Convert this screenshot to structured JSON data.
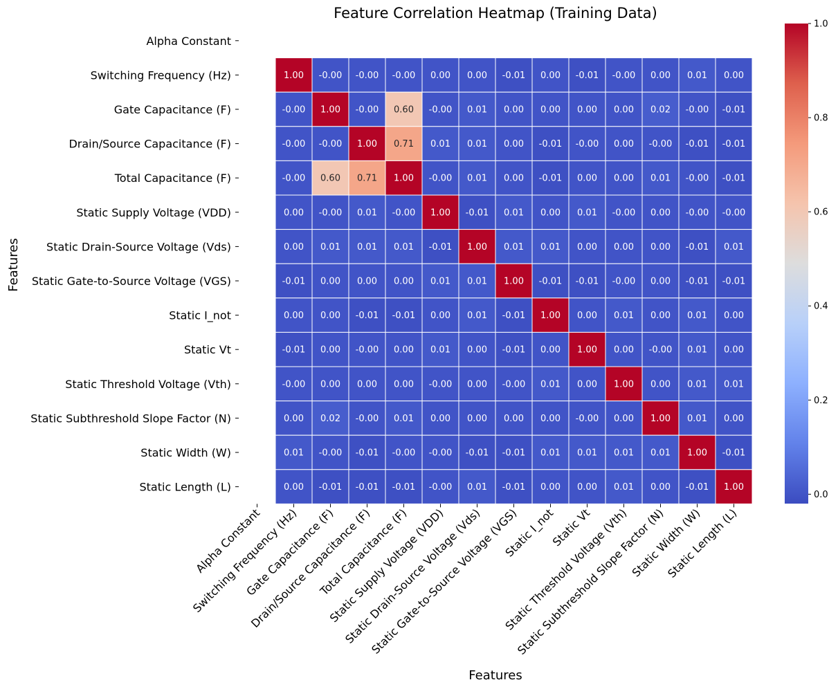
{
  "chart_data": {
    "type": "heatmap",
    "title": "Feature Correlation Heatmap (Training Data)",
    "xlabel": "Features",
    "ylabel": "Features",
    "features": [
      "Alpha Constant",
      "Switching Frequency (Hz)",
      "Gate Capacitance (F)",
      "Drain/Source Capacitance (F)",
      "Total Capacitance (F)",
      "Static Supply Voltage (VDD)",
      "Static Drain-Source Voltage (Vds)",
      "Static Gate-to-Source Voltage (VGS)",
      "Static I_not",
      "Static Vt",
      "Static Threshold Voltage (Vth)",
      "Static Subthreshold Slope Factor (N)",
      "Static Width (W)",
      "Static Length (L)"
    ],
    "matrix": [
      [
        null,
        null,
        null,
        null,
        null,
        null,
        null,
        null,
        null,
        null,
        null,
        null,
        null,
        null
      ],
      [
        null,
        1.0,
        -0.0,
        -0.0,
        -0.0,
        0.0,
        0.0,
        -0.01,
        0.0,
        -0.01,
        -0.0,
        0.0,
        0.01,
        0.0
      ],
      [
        null,
        -0.0,
        1.0,
        -0.0,
        0.6,
        -0.0,
        0.01,
        0.0,
        0.0,
        0.0,
        0.0,
        0.02,
        -0.0,
        -0.01
      ],
      [
        null,
        -0.0,
        -0.0,
        1.0,
        0.71,
        0.01,
        0.01,
        0.0,
        -0.01,
        -0.0,
        0.0,
        -0.0,
        -0.01,
        -0.01
      ],
      [
        null,
        -0.0,
        0.6,
        0.71,
        1.0,
        -0.0,
        0.01,
        0.0,
        -0.01,
        0.0,
        0.0,
        0.01,
        -0.0,
        -0.01
      ],
      [
        null,
        0.0,
        -0.0,
        0.01,
        -0.0,
        1.0,
        -0.01,
        0.01,
        0.0,
        0.01,
        -0.0,
        0.0,
        -0.0,
        -0.0
      ],
      [
        null,
        0.0,
        0.01,
        0.01,
        0.01,
        -0.01,
        1.0,
        0.01,
        0.01,
        0.0,
        0.0,
        0.0,
        -0.01,
        0.01
      ],
      [
        null,
        -0.01,
        0.0,
        0.0,
        0.0,
        0.01,
        0.01,
        1.0,
        -0.01,
        -0.01,
        -0.0,
        0.0,
        -0.01,
        -0.01
      ],
      [
        null,
        0.0,
        0.0,
        -0.01,
        -0.01,
        0.0,
        0.01,
        -0.01,
        1.0,
        0.0,
        0.01,
        0.0,
        0.01,
        0.0
      ],
      [
        null,
        -0.01,
        0.0,
        -0.0,
        0.0,
        0.01,
        0.0,
        -0.01,
        0.0,
        1.0,
        0.0,
        -0.0,
        0.01,
        0.0
      ],
      [
        null,
        -0.0,
        0.0,
        0.0,
        0.0,
        -0.0,
        0.0,
        -0.0,
        0.01,
        0.0,
        1.0,
        0.0,
        0.01,
        0.01
      ],
      [
        null,
        0.0,
        0.02,
        -0.0,
        0.01,
        0.0,
        0.0,
        0.0,
        0.0,
        -0.0,
        0.0,
        1.0,
        0.01,
        0.0
      ],
      [
        null,
        0.01,
        -0.0,
        -0.01,
        -0.0,
        -0.0,
        -0.01,
        -0.01,
        0.01,
        0.01,
        0.01,
        0.01,
        1.0,
        -0.01
      ],
      [
        null,
        0.0,
        -0.01,
        -0.01,
        -0.01,
        -0.0,
        0.01,
        -0.01,
        0.0,
        0.0,
        0.01,
        0.0,
        -0.01,
        1.0
      ]
    ],
    "colormap": "coolwarm",
    "color_min": -0.02,
    "color_max": 1.0,
    "colorbar_ticks": [
      0.0,
      0.2,
      0.4,
      0.6,
      0.8,
      1.0
    ],
    "colorbar_tick_labels": [
      "0.0",
      "0.2",
      "0.4",
      "0.6",
      "0.8",
      "1.0"
    ],
    "value_format": "2 decimals",
    "grid_lines": "white"
  }
}
